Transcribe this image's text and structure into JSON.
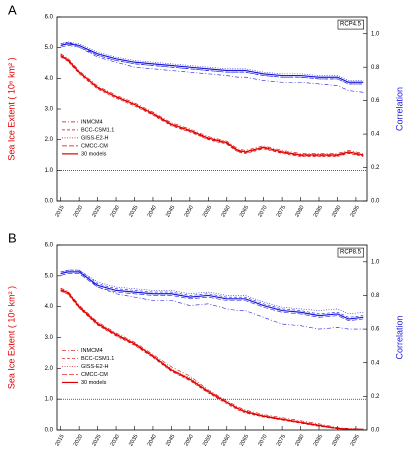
{
  "chart_data": [
    {
      "type": "line",
      "label": "A",
      "annotation": "RCP4.5",
      "ylabel": "Sea Ice Extent ( 10⁶ km² )",
      "y2label": "Correlation",
      "x": [
        2015,
        2017,
        2020,
        2025,
        2030,
        2035,
        2040,
        2045,
        2050,
        2055,
        2060,
        2063,
        2065,
        2070,
        2075,
        2080,
        2085,
        2090,
        2093,
        2097
      ],
      "xlim": [
        2014,
        2098
      ],
      "xticks": [
        2015,
        2020,
        2025,
        2030,
        2035,
        2040,
        2045,
        2050,
        2055,
        2060,
        2065,
        2070,
        2075,
        2080,
        2085,
        2090,
        2095
      ],
      "ylim": [
        0,
        6
      ],
      "yticks": [
        {
          "value": 0,
          "label": "0.0"
        },
        {
          "value": 1,
          "label": "1.0"
        },
        {
          "value": 2,
          "label": "2.0"
        },
        {
          "value": 3,
          "label": "3.0"
        },
        {
          "value": 4,
          "label": "4.0"
        },
        {
          "value": 5,
          "label": "5.0"
        },
        {
          "value": 6,
          "label": "6.0"
        }
      ],
      "y2lim": [
        0,
        1.1
      ],
      "y2ticks": [
        {
          "value": 0,
          "label": "0.0"
        },
        0.2,
        0.4,
        0.6,
        0.8,
        {
          "value": 1,
          "label": "1.0"
        }
      ],
      "reference_line": 1,
      "series": [
        {
          "name": "INMCM4",
          "color": "#e00000",
          "y2_color": "#1a1ae0",
          "dash": "4 2 1 2",
          "values": [
            4.8,
            4.65,
            4.25,
            3.75,
            3.45,
            3.2,
            2.9,
            2.55,
            2.35,
            2.1,
            1.95,
            1.7,
            1.65,
            1.8,
            1.65,
            1.55,
            1.55,
            1.55,
            1.65,
            1.55
          ],
          "y2_values": [
            0.94,
            0.95,
            0.92,
            0.86,
            0.83,
            0.8,
            0.79,
            0.78,
            0.77,
            0.76,
            0.75,
            0.74,
            0.74,
            0.72,
            0.71,
            0.71,
            0.7,
            0.69,
            0.66,
            0.65
          ]
        },
        {
          "name": "BCC-CSM1.1",
          "color": "#e00000",
          "y2_color": "#1a1ae0",
          "dash": "3 2",
          "values": [
            4.7,
            4.55,
            4.15,
            3.65,
            3.35,
            3.1,
            2.8,
            2.45,
            2.25,
            2.0,
            1.85,
            1.6,
            1.55,
            1.7,
            1.55,
            1.45,
            1.45,
            1.45,
            1.55,
            1.45
          ],
          "y2_values": [
            0.93,
            0.95,
            0.93,
            0.87,
            0.84,
            0.82,
            0.81,
            0.8,
            0.79,
            0.78,
            0.77,
            0.77,
            0.77,
            0.75,
            0.74,
            0.74,
            0.73,
            0.73,
            0.7,
            0.7
          ]
        },
        {
          "name": "GISS-E2-H",
          "color": "#e00000",
          "y2_color": "#1a1ae0",
          "dash": "1 1.5",
          "values": [
            4.78,
            4.62,
            4.22,
            3.72,
            3.42,
            3.17,
            2.88,
            2.52,
            2.32,
            2.07,
            1.92,
            1.67,
            1.62,
            1.77,
            1.62,
            1.52,
            1.52,
            1.52,
            1.62,
            1.52
          ],
          "y2_values": [
            0.94,
            0.95,
            0.94,
            0.89,
            0.86,
            0.84,
            0.83,
            0.82,
            0.81,
            0.8,
            0.79,
            0.79,
            0.79,
            0.77,
            0.76,
            0.76,
            0.75,
            0.75,
            0.72,
            0.72
          ]
        },
        {
          "name": "CMCC-CM",
          "color": "#e00000",
          "y2_color": "#1a1ae0",
          "dash": "5 2",
          "values": [
            4.72,
            4.57,
            4.18,
            3.68,
            3.38,
            3.13,
            2.82,
            2.47,
            2.27,
            2.02,
            1.87,
            1.62,
            1.57,
            1.72,
            1.57,
            1.47,
            1.47,
            1.47,
            1.57,
            1.47
          ],
          "y2_values": [
            0.92,
            0.93,
            0.92,
            0.87,
            0.84,
            0.82,
            0.81,
            0.8,
            0.79,
            0.78,
            0.77,
            0.77,
            0.77,
            0.75,
            0.74,
            0.74,
            0.73,
            0.73,
            0.7,
            0.7
          ]
        },
        {
          "name": "30 models",
          "color": "#e00000",
          "y2_color": "#1a1ae0",
          "dash": "none",
          "values": [
            4.75,
            4.6,
            4.2,
            3.7,
            3.4,
            3.15,
            2.85,
            2.5,
            2.3,
            2.05,
            1.9,
            1.65,
            1.6,
            1.75,
            1.6,
            1.5,
            1.5,
            1.5,
            1.6,
            1.5
          ],
          "y2_values": [
            0.93,
            0.94,
            0.93,
            0.88,
            0.85,
            0.83,
            0.82,
            0.81,
            0.8,
            0.79,
            0.78,
            0.78,
            0.78,
            0.76,
            0.75,
            0.75,
            0.74,
            0.74,
            0.71,
            0.71
          ]
        }
      ]
    },
    {
      "type": "line",
      "label": "B",
      "annotation": "RCP8.5",
      "ylabel": "Sea Ice Extent ( 10⁶ km² )",
      "y2label": "Correlation",
      "x": [
        2015,
        2017,
        2020,
        2025,
        2030,
        2035,
        2040,
        2045,
        2050,
        2055,
        2060,
        2063,
        2065,
        2070,
        2075,
        2080,
        2085,
        2090,
        2093,
        2097
      ],
      "xlim": [
        2014,
        2098
      ],
      "xticks": [
        2015,
        2020,
        2025,
        2030,
        2035,
        2040,
        2045,
        2050,
        2055,
        2060,
        2065,
        2070,
        2075,
        2080,
        2085,
        2090,
        2095
      ],
      "ylim": [
        0,
        6
      ],
      "yticks": [
        {
          "value": 0,
          "label": "0.0"
        },
        {
          "value": 1,
          "label": "1.0"
        },
        {
          "value": 2,
          "label": "2.0"
        },
        {
          "value": 3,
          "label": "3.0"
        },
        {
          "value": 4,
          "label": "4.0"
        },
        {
          "value": 5,
          "label": "5.0"
        },
        {
          "value": 6,
          "label": "6.0"
        }
      ],
      "y2lim": [
        0,
        1.1
      ],
      "y2ticks": [
        {
          "value": 0,
          "label": "0.0"
        },
        0.2,
        0.4,
        0.6,
        0.8,
        {
          "value": 1,
          "label": "1.0"
        }
      ],
      "reference_line": 1,
      "series": [
        {
          "name": "INMCM4",
          "color": "#e00000",
          "y2_color": "#1a1ae0",
          "dash": "4 2 1 2",
          "values": [
            4.6,
            4.5,
            4.05,
            3.5,
            3.15,
            2.85,
            2.45,
            2.05,
            1.75,
            1.3,
            0.95,
            0.75,
            0.65,
            0.5,
            0.4,
            0.3,
            0.2,
            0.08,
            0.05,
            0.03
          ],
          "y2_values": [
            0.94,
            0.95,
            0.95,
            0.85,
            0.81,
            0.79,
            0.77,
            0.77,
            0.74,
            0.75,
            0.72,
            0.71,
            0.71,
            0.67,
            0.63,
            0.62,
            0.6,
            0.61,
            0.6,
            0.6
          ]
        },
        {
          "name": "BCC-CSM1.1",
          "color": "#e00000",
          "y2_color": "#1a1ae0",
          "dash": "3 2",
          "values": [
            4.5,
            4.4,
            3.95,
            3.4,
            3.05,
            2.75,
            2.35,
            1.9,
            1.6,
            1.2,
            0.85,
            0.65,
            0.55,
            0.42,
            0.32,
            0.22,
            0.12,
            0.04,
            0.02,
            0.01
          ],
          "y2_values": [
            0.93,
            0.95,
            0.95,
            0.87,
            0.84,
            0.83,
            0.82,
            0.82,
            0.8,
            0.81,
            0.79,
            0.79,
            0.79,
            0.75,
            0.72,
            0.71,
            0.69,
            0.7,
            0.67,
            0.68
          ]
        },
        {
          "name": "GISS-E2-H",
          "color": "#e00000",
          "y2_color": "#1a1ae0",
          "dash": "1 1.5",
          "values": [
            4.58,
            4.47,
            4.02,
            3.48,
            3.12,
            2.82,
            2.42,
            1.98,
            1.7,
            1.28,
            0.92,
            0.72,
            0.62,
            0.47,
            0.37,
            0.27,
            0.17,
            0.06,
            0.04,
            0.02
          ],
          "y2_values": [
            0.94,
            0.95,
            0.95,
            0.88,
            0.85,
            0.84,
            0.83,
            0.83,
            0.81,
            0.82,
            0.8,
            0.8,
            0.8,
            0.76,
            0.73,
            0.72,
            0.71,
            0.72,
            0.69,
            0.7
          ]
        },
        {
          "name": "CMCC-CM",
          "color": "#e00000",
          "y2_color": "#1a1ae0",
          "dash": "5 2",
          "values": [
            4.52,
            4.42,
            3.97,
            3.42,
            3.07,
            2.77,
            2.37,
            1.92,
            1.62,
            1.22,
            0.88,
            0.68,
            0.58,
            0.43,
            0.33,
            0.23,
            0.13,
            0.04,
            0.02,
            0.01
          ],
          "y2_values": [
            0.92,
            0.93,
            0.93,
            0.85,
            0.82,
            0.81,
            0.8,
            0.8,
            0.78,
            0.79,
            0.77,
            0.77,
            0.77,
            0.73,
            0.7,
            0.69,
            0.67,
            0.68,
            0.65,
            0.66
          ]
        },
        {
          "name": "30 models",
          "color": "#e00000",
          "y2_color": "#1a1ae0",
          "dash": "none",
          "values": [
            4.55,
            4.45,
            4.0,
            3.45,
            3.1,
            2.8,
            2.4,
            1.95,
            1.65,
            1.25,
            0.9,
            0.7,
            0.6,
            0.45,
            0.35,
            0.25,
            0.15,
            0.05,
            0.03,
            0.02
          ],
          "y2_values": [
            0.93,
            0.94,
            0.94,
            0.86,
            0.83,
            0.82,
            0.81,
            0.81,
            0.79,
            0.8,
            0.78,
            0.78,
            0.78,
            0.74,
            0.71,
            0.7,
            0.68,
            0.69,
            0.66,
            0.67
          ]
        }
      ]
    }
  ]
}
